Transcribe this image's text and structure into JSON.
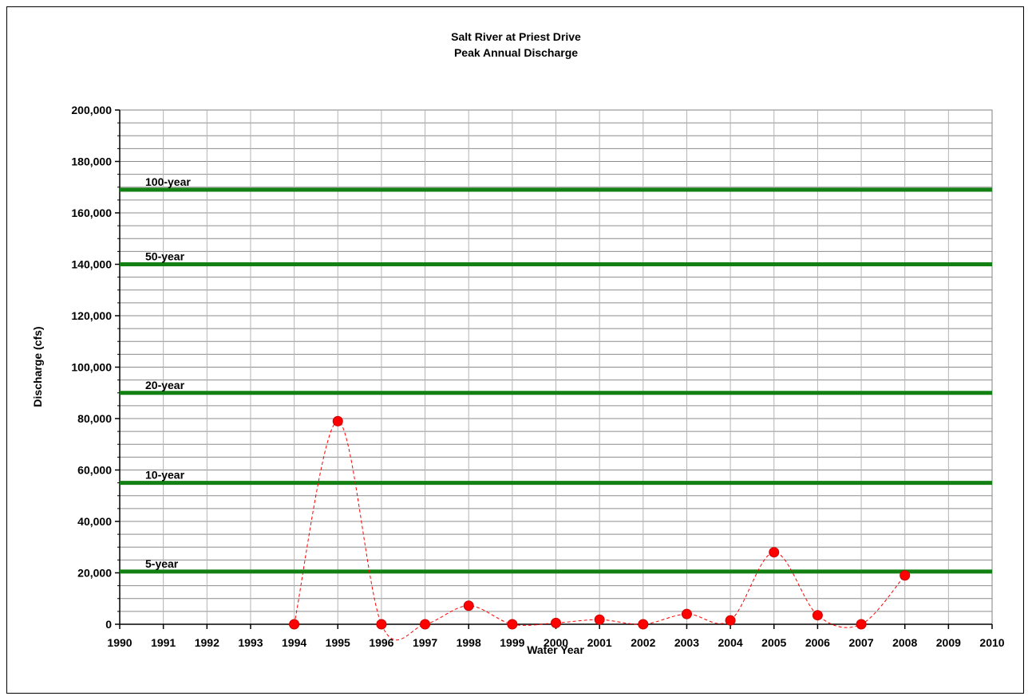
{
  "chart_data": {
    "type": "scatter",
    "title": "Salt River at Priest Drive",
    "subtitle": "Peak Annual Discharge",
    "xlabel": "Water Year",
    "ylabel": "Discharge (cfs)",
    "xlim": [
      1990,
      2010
    ],
    "ylim": [
      0,
      200000
    ],
    "x_ticks": [
      "1990",
      "1991",
      "1992",
      "1993",
      "1994",
      "1995",
      "1996",
      "1997",
      "1998",
      "1999",
      "2000",
      "2001",
      "2002",
      "2003",
      "2004",
      "2005",
      "2006",
      "2007",
      "2008",
      "2009",
      "2010"
    ],
    "y_ticks": [
      "0",
      "20,000",
      "40,000",
      "60,000",
      "80,000",
      "100,000",
      "120,000",
      "140,000",
      "160,000",
      "180,000",
      "200,000"
    ],
    "y_tick_values": [
      0,
      20000,
      40000,
      60000,
      80000,
      100000,
      120000,
      140000,
      160000,
      180000,
      200000
    ],
    "grid": true,
    "series": [
      {
        "x": [
          1994,
          1995,
          1996,
          1997,
          1998,
          1999,
          2000,
          2001,
          2002,
          2003,
          2004,
          2005,
          2006,
          2007,
          2008
        ],
        "y": [
          0,
          79000,
          0,
          0,
          7200,
          0,
          500,
          1800,
          0,
          4000,
          1500,
          28000,
          3500,
          0,
          19000
        ],
        "color": "#ff0000",
        "line_style": "dashed"
      }
    ],
    "reference_lines": [
      {
        "label": "100-year",
        "value": 169000,
        "color": "#128012"
      },
      {
        "label": "50-year",
        "value": 140000,
        "color": "#128012"
      },
      {
        "label": "20-year",
        "value": 90000,
        "color": "#128012"
      },
      {
        "label": "10-year",
        "value": 55000,
        "color": "#128012"
      },
      {
        "label": "5-year",
        "value": 20500,
        "color": "#128012"
      }
    ]
  }
}
